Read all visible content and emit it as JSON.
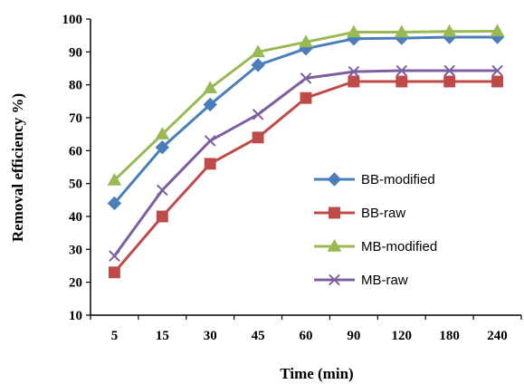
{
  "chart_data": {
    "type": "line",
    "title": "",
    "xlabel": "Time (min)",
    "ylabel": "Removal efficiency %)",
    "categories": [
      "5",
      "15",
      "30",
      "45",
      "60",
      "90",
      "120",
      "180",
      "240"
    ],
    "ylim": [
      10,
      100
    ],
    "yticks": [
      "10",
      "20",
      "30",
      "40",
      "50",
      "60",
      "70",
      "80",
      "90",
      "100"
    ],
    "grid": false,
    "legend_position": "right",
    "series": [
      {
        "name": "BB-modified",
        "color": "#4a7ebb",
        "marker": "diamond",
        "values": [
          44,
          61,
          74,
          86,
          91,
          94,
          94.2,
          94.5,
          94.5
        ]
      },
      {
        "name": "BB-raw",
        "color": "#be4b48",
        "marker": "square",
        "values": [
          23,
          40,
          56,
          64,
          76,
          81,
          81,
          81,
          81
        ]
      },
      {
        "name": "MB-modified",
        "color": "#98b954",
        "marker": "triangle",
        "values": [
          51,
          65,
          79,
          90,
          93,
          96,
          96,
          96.2,
          96.3
        ]
      },
      {
        "name": "MB-raw",
        "color": "#7d5fa0",
        "marker": "x",
        "values": [
          28,
          48,
          63,
          71,
          82,
          84,
          84.3,
          84.3,
          84.3
        ]
      }
    ]
  }
}
